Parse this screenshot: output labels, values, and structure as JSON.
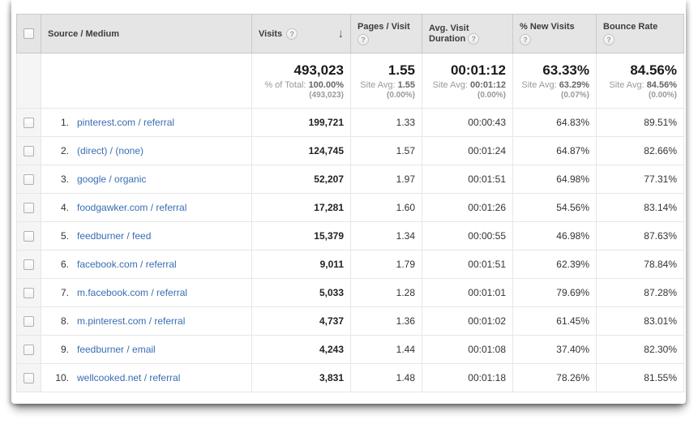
{
  "colors": {
    "link-blue": "#3a6db4",
    "header-bg": "#e5e5e5",
    "text-dark": "#333333",
    "muted-gray": "#999999"
  },
  "icons": {
    "help": "?",
    "sort_desc": "↓"
  },
  "table": {
    "columns": {
      "source_medium": "Source / Medium",
      "visits": "Visits",
      "pages_per_visit": "Pages / Visit",
      "avg_visit_duration": "Avg. Visit Duration",
      "new_visits": "% New Visits",
      "bounce_rate": "Bounce Rate"
    },
    "summary": {
      "visits": {
        "value": "493,023",
        "label": "% of Total:",
        "pct": "100.00%",
        "paren": "(493,023)"
      },
      "pages": {
        "value": "1.55",
        "label": "Site Avg:",
        "avg": "1.55",
        "paren": "(0.00%)"
      },
      "duration": {
        "value": "00:01:12",
        "label": "Site Avg:",
        "avg": "00:01:12",
        "paren": "(0.00%)"
      },
      "new_visits": {
        "value": "63.33%",
        "label": "Site Avg:",
        "avg": "63.29%",
        "paren": "(0.07%)"
      },
      "bounce": {
        "value": "84.56%",
        "label": "Site Avg:",
        "avg": "84.56%",
        "paren": "(0.00%)"
      }
    },
    "rows": [
      {
        "rank": "1.",
        "source": "pinterest.com / referral",
        "visits": "199,721",
        "pages": "1.33",
        "duration": "00:00:43",
        "new_visits": "64.83%",
        "bounce": "89.51%"
      },
      {
        "rank": "2.",
        "source": "(direct) / (none)",
        "visits": "124,745",
        "pages": "1.57",
        "duration": "00:01:24",
        "new_visits": "64.87%",
        "bounce": "82.66%"
      },
      {
        "rank": "3.",
        "source": "google / organic",
        "visits": "52,207",
        "pages": "1.97",
        "duration": "00:01:51",
        "new_visits": "64.98%",
        "bounce": "77.31%"
      },
      {
        "rank": "4.",
        "source": "foodgawker.com / referral",
        "visits": "17,281",
        "pages": "1.60",
        "duration": "00:01:26",
        "new_visits": "54.56%",
        "bounce": "83.14%"
      },
      {
        "rank": "5.",
        "source": "feedburner / feed",
        "visits": "15,379",
        "pages": "1.34",
        "duration": "00:00:55",
        "new_visits": "46.98%",
        "bounce": "87.63%"
      },
      {
        "rank": "6.",
        "source": "facebook.com / referral",
        "visits": "9,011",
        "pages": "1.79",
        "duration": "00:01:51",
        "new_visits": "62.39%",
        "bounce": "78.84%"
      },
      {
        "rank": "7.",
        "source": "m.facebook.com / referral",
        "visits": "5,033",
        "pages": "1.28",
        "duration": "00:01:01",
        "new_visits": "79.69%",
        "bounce": "87.28%"
      },
      {
        "rank": "8.",
        "source": "m.pinterest.com / referral",
        "visits": "4,737",
        "pages": "1.36",
        "duration": "00:01:02",
        "new_visits": "61.45%",
        "bounce": "83.01%"
      },
      {
        "rank": "9.",
        "source": "feedburner / email",
        "visits": "4,243",
        "pages": "1.44",
        "duration": "00:01:08",
        "new_visits": "37.40%",
        "bounce": "82.30%"
      },
      {
        "rank": "10.",
        "source": "wellcooked.net / referral",
        "visits": "3,831",
        "pages": "1.48",
        "duration": "00:01:18",
        "new_visits": "78.26%",
        "bounce": "81.55%"
      }
    ]
  }
}
